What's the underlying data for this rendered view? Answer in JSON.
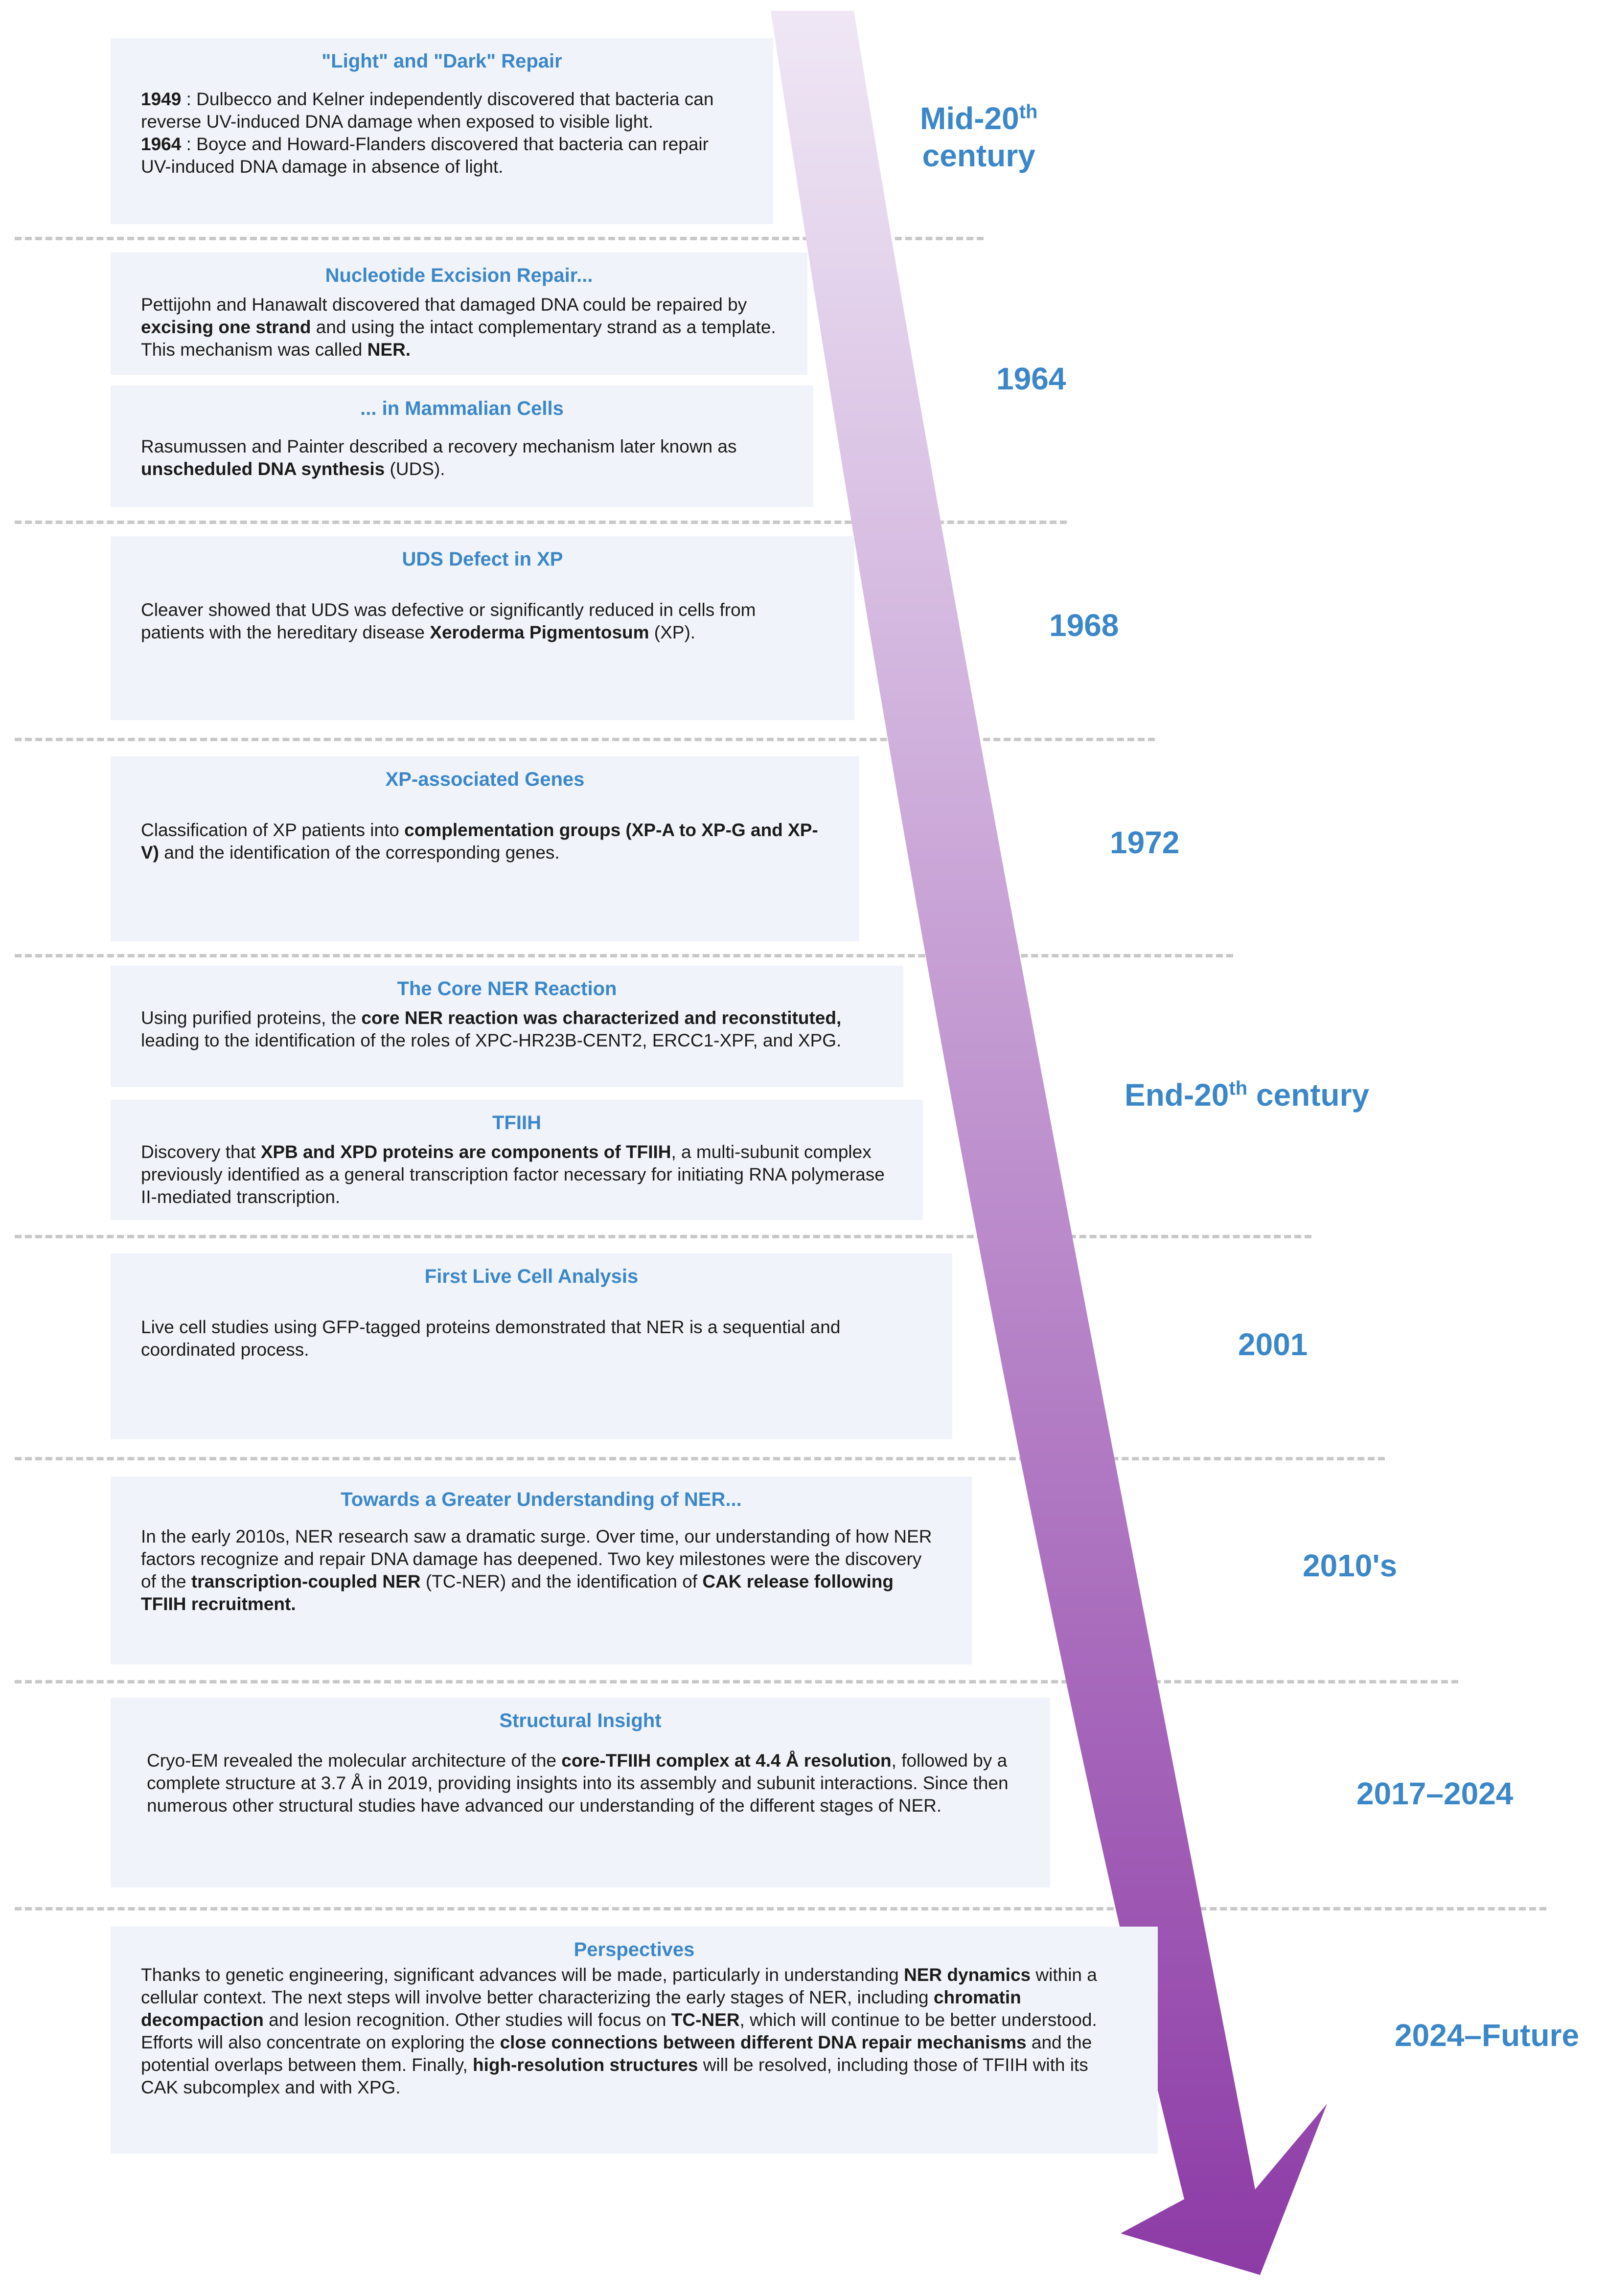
{
  "colors": {
    "accent_blue": "#3b87c8",
    "box_bg": "#f0f3f9",
    "divider": "#c8c8c8",
    "arrow_top": "#efe7f5",
    "arrow_bottom": "#8d3ba6"
  },
  "eras": [
    {
      "main": "Mid-20",
      "sup": "th",
      "rest": "century"
    },
    {
      "text": "1964"
    },
    {
      "text": "1968"
    },
    {
      "text": "1972"
    },
    {
      "main": "End-20",
      "sup": "th",
      "rest": " century"
    },
    {
      "text": "2001"
    },
    {
      "text": "2010's"
    },
    {
      "text": "2017–2024"
    },
    {
      "text": "2024–Future"
    }
  ],
  "boxes": {
    "light_dark": {
      "title": "\"Light\" and \"Dark\" Repair",
      "p1": [
        {
          "b": "1949"
        },
        {
          "t": " : Dulbecco and Kelner independently discovered that bacteria can reverse UV-induced DNA damage when exposed to visible light."
        }
      ],
      "p2": [
        {
          "b": "1964"
        },
        {
          "t": " : Boyce and Howard-Flanders discovered that bacteria can repair UV-induced DNA damage in absence of light."
        }
      ]
    },
    "ner": {
      "title": "Nucleotide Excision Repair...",
      "p1": [
        {
          "t": "Pettijohn and Hanawalt discovered that damaged DNA could be repaired by "
        },
        {
          "b": "excising one strand"
        },
        {
          "t": " and using the intact complementary strand as a template. This mechanism was called "
        },
        {
          "b": "NER."
        }
      ]
    },
    "mammalian": {
      "title": "... in Mammalian Cells",
      "p1": [
        {
          "t": "Rasumussen and Painter described a recovery mechanism later known as "
        },
        {
          "b": "unscheduled DNA synthesis"
        },
        {
          "t": " (UDS)."
        }
      ]
    },
    "uds_xp": {
      "title": "UDS Defect in XP",
      "p1": [
        {
          "t": "Cleaver showed that UDS was defective or significantly reduced in cells from patients with the hereditary disease "
        },
        {
          "b": "Xeroderma Pigmentosum"
        },
        {
          "t": " (XP)."
        }
      ]
    },
    "xp_genes": {
      "title": "XP-associated Genes",
      "p1": [
        {
          "t": "Classification of XP patients into "
        },
        {
          "b": "complementation groups (XP-A to XP-G and XP-V)"
        },
        {
          "t": " and the identification of the corresponding genes."
        }
      ]
    },
    "core_ner": {
      "title": "The Core NER Reaction",
      "p1": [
        {
          "t": "Using purified proteins, the "
        },
        {
          "b": "core NER reaction was characterized and reconstituted,"
        },
        {
          "t": " leading to the identification of the roles of XPC-HR23B-CENT2, ERCC1-XPF, and XPG."
        }
      ]
    },
    "tfiih": {
      "title": "TFIIH",
      "p1": [
        {
          "t": "Discovery that "
        },
        {
          "b": "XPB and XPD proteins are components of TFIIH"
        },
        {
          "t": ", a multi-subunit complex previously identified as a general transcription factor necessary for initiating RNA polymerase II-mediated transcription."
        }
      ]
    },
    "live_cell": {
      "title": "First Live Cell Analysis",
      "p1": [
        {
          "t": "Live cell studies using GFP-tagged proteins demonstrated that NER is a sequential and coordinated process."
        }
      ]
    },
    "greater": {
      "title": "Towards a Greater Understanding of NER...",
      "p1": [
        {
          "t": "In the early 2010s, NER research saw a dramatic surge. Over time, our understanding of how NER factors recognize and repair DNA damage has deepened. Two key milestones were the discovery of the "
        },
        {
          "b": "transcription-coupled NER"
        },
        {
          "t": " (TC-NER) and the identification of "
        },
        {
          "b": "CAK release following TFIIH recruitment."
        }
      ]
    },
    "structural": {
      "title": "Structural Insight",
      "p1": [
        {
          "t": "Cryo-EM revealed the molecular architecture of the "
        },
        {
          "b": "core-TFIIH complex at 4.4 Å resolution"
        },
        {
          "t": ", followed by a complete structure at 3.7 Å in 2019, providing insights into its assembly and subunit interactions. Since then numerous other structural studies have advanced our understanding of the different stages of NER."
        }
      ]
    },
    "perspectives": {
      "title": "Perspectives",
      "p1": [
        {
          "t": "Thanks to genetic engineering, significant advances will be made, particularly in understanding "
        },
        {
          "b": "NER dynamics"
        },
        {
          "t": " within a cellular context. The next steps will involve better characterizing the early stages of NER, including "
        },
        {
          "b": "chromatin decompaction"
        },
        {
          "t": " and lesion recognition. Other studies will focus on "
        },
        {
          "b": "TC-NER"
        },
        {
          "t": ", which will continue to be better understood. Efforts will also concentrate on exploring the "
        },
        {
          "b": "close connections between different DNA repair mechanisms"
        },
        {
          "t": " and the potential overlaps between them. Finally, "
        },
        {
          "b": "high-resolution structures"
        },
        {
          "t": " will be resolved, including those of TFIIH with its CAK subcomplex and with XPG."
        }
      ]
    }
  }
}
